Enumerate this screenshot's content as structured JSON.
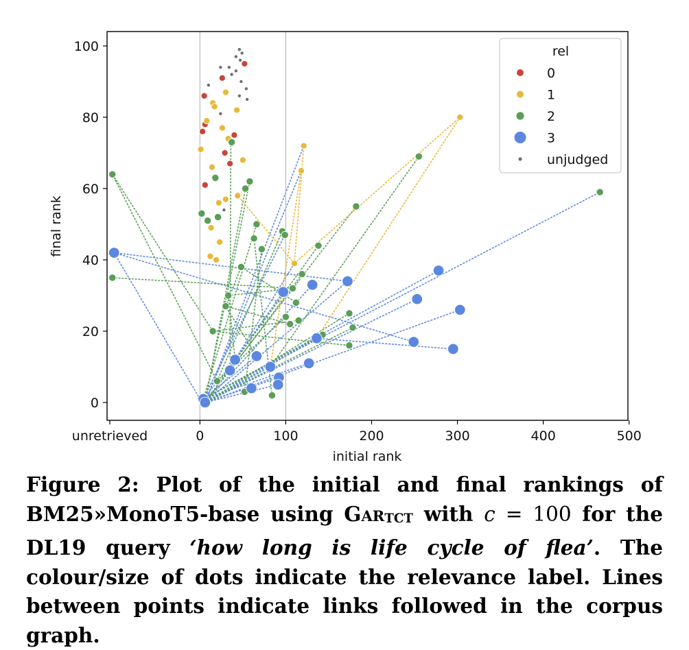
{
  "chart_data": {
    "type": "scatter",
    "xlabel": "initial rank",
    "ylabel": "final rank",
    "xlim": [
      -105,
      500
    ],
    "ylim": [
      -5,
      104
    ],
    "x_tick_values": [
      -105,
      0,
      100,
      200,
      300,
      400,
      500
    ],
    "x_tick_labels": [
      "unretrieved",
      "0",
      "100",
      "200",
      "300",
      "400",
      "500"
    ],
    "y_tick_values": [
      0,
      20,
      40,
      60,
      80,
      100
    ],
    "y_tick_labels": [
      "0",
      "20",
      "40",
      "60",
      "80",
      "100"
    ],
    "vertical_reference_lines": [
      0,
      100
    ],
    "legend": {
      "title": "rel",
      "placement": "top-right",
      "entries": [
        {
          "label": "0",
          "key": "0"
        },
        {
          "label": "1",
          "key": "1"
        },
        {
          "label": "2",
          "key": "2"
        },
        {
          "label": "3",
          "key": "3"
        },
        {
          "label": "unjudged",
          "key": "u"
        }
      ]
    },
    "relevance_colors": {
      "0": "#c9453a",
      "1": "#e8b838",
      "2": "#5a9e57",
      "3": "#5b87e0",
      "u": "#6e6e6e"
    },
    "points": [
      [
        46,
        99,
        "u"
      ],
      [
        49,
        98,
        "u"
      ],
      [
        42,
        97,
        "u"
      ],
      [
        47,
        96,
        "u"
      ],
      [
        52,
        95,
        "r0"
      ],
      [
        24,
        94,
        "u"
      ],
      [
        34,
        94,
        "u"
      ],
      [
        42,
        93,
        "u"
      ],
      [
        37,
        92,
        "u"
      ],
      [
        26,
        91,
        "r0"
      ],
      [
        48,
        90,
        "u"
      ],
      [
        10,
        89,
        "u"
      ],
      [
        54,
        88,
        "u"
      ],
      [
        30,
        87,
        "r1"
      ],
      [
        5,
        86,
        "r0"
      ],
      [
        46,
        86,
        "u"
      ],
      [
        55,
        85,
        "u"
      ],
      [
        15,
        84,
        "r1"
      ],
      [
        17,
        83,
        "r1"
      ],
      [
        43,
        82,
        "r1"
      ],
      [
        24,
        81,
        "u"
      ],
      [
        8,
        79,
        "r1"
      ],
      [
        6,
        78,
        "r0"
      ],
      [
        26,
        77,
        "r1"
      ],
      [
        3,
        76,
        "r0"
      ],
      [
        40,
        75,
        "r0"
      ],
      [
        33,
        74,
        "r1"
      ],
      [
        37,
        73,
        "r2"
      ],
      [
        29,
        70,
        "r0"
      ],
      [
        1,
        71,
        "r1"
      ],
      [
        50,
        68,
        "r1"
      ],
      [
        35,
        67,
        "r0"
      ],
      [
        14,
        66,
        "r1"
      ],
      [
        6,
        61,
        "r0"
      ],
      [
        18,
        63,
        "r2"
      ],
      [
        58,
        62,
        "r2"
      ],
      [
        53,
        60,
        "r2"
      ],
      [
        44,
        58,
        "r1"
      ],
      [
        30,
        57,
        "r1"
      ],
      [
        22,
        56,
        "r1"
      ],
      [
        28,
        54,
        "u"
      ],
      [
        2,
        53,
        "r2"
      ],
      [
        21,
        52,
        "r2"
      ],
      [
        9,
        51,
        "r2"
      ],
      [
        66,
        50,
        "r2"
      ],
      [
        13,
        49,
        "r1"
      ],
      [
        96,
        48,
        "r2"
      ],
      [
        99,
        47,
        "r2"
      ],
      [
        63,
        46,
        "r2"
      ],
      [
        23,
        45,
        "r1"
      ],
      [
        138,
        44,
        "r2"
      ],
      [
        72,
        43,
        "r2"
      ],
      [
        12,
        41,
        "r1"
      ],
      [
        19,
        40,
        "r1"
      ],
      [
        110,
        39,
        "r1"
      ],
      [
        48,
        38,
        "r2"
      ],
      [
        119,
        36,
        "r2"
      ],
      [
        108,
        32,
        "r2"
      ],
      [
        33,
        30,
        "r2"
      ],
      [
        112,
        28,
        "r2"
      ],
      [
        30,
        27,
        "r2"
      ],
      [
        174,
        25,
        "r2"
      ],
      [
        100,
        24,
        "r2"
      ],
      [
        115,
        23,
        "r2"
      ],
      [
        105,
        22,
        "r2"
      ],
      [
        178,
        21,
        "r2"
      ],
      [
        15,
        20,
        "r2"
      ],
      [
        143,
        19,
        "r2"
      ],
      [
        174,
        16,
        "r2"
      ],
      [
        20,
        6,
        "r2"
      ],
      [
        52,
        3,
        "r2"
      ],
      [
        84,
        2,
        "r2"
      ],
      [
        -102,
        64,
        "r2"
      ],
      [
        -102,
        35,
        "r2"
      ],
      [
        255,
        69,
        "r2"
      ],
      [
        182,
        55,
        "r2"
      ],
      [
        466,
        59,
        "r2"
      ],
      [
        121,
        72,
        "r1"
      ],
      [
        118,
        65,
        "r1"
      ],
      [
        303,
        80,
        "r1"
      ],
      [
        -100,
        42,
        "r3"
      ],
      [
        172,
        34,
        "r3"
      ],
      [
        131,
        33,
        "r3"
      ],
      [
        97,
        31,
        "r3"
      ],
      [
        278,
        37,
        "r3"
      ],
      [
        253,
        29,
        "r3"
      ],
      [
        303,
        26,
        "r3"
      ],
      [
        136,
        18,
        "r3"
      ],
      [
        249,
        17,
        "r3"
      ],
      [
        295,
        15,
        "r3"
      ],
      [
        41,
        12,
        "r3"
      ],
      [
        66,
        13,
        "r3"
      ],
      [
        127,
        11,
        "r3"
      ],
      [
        82,
        10,
        "r3"
      ],
      [
        35,
        9,
        "r3"
      ],
      [
        92,
        7,
        "r3"
      ],
      [
        91,
        5,
        "r3"
      ],
      [
        60,
        4,
        "r3"
      ],
      [
        4,
        1,
        "r3"
      ],
      [
        6,
        0,
        "r3"
      ]
    ],
    "links": [
      [
        0,
        1,
        -100,
        42,
        "b"
      ],
      [
        -100,
        42,
        172,
        34,
        "b"
      ],
      [
        6,
        0,
        172,
        34,
        "b"
      ],
      [
        4,
        1,
        278,
        37,
        "b"
      ],
      [
        6,
        0,
        253,
        29,
        "b"
      ],
      [
        6,
        0,
        303,
        26,
        "b"
      ],
      [
        -100,
        42,
        249,
        17,
        "b"
      ],
      [
        136,
        18,
        295,
        15,
        "b"
      ],
      [
        6,
        0,
        97,
        31,
        "b"
      ],
      [
        6,
        0,
        131,
        33,
        "b"
      ],
      [
        6,
        0,
        136,
        18,
        "b"
      ],
      [
        4,
        1,
        127,
        11,
        "b"
      ],
      [
        6,
        0,
        91,
        5,
        "b"
      ],
      [
        4,
        1,
        66,
        13,
        "b"
      ],
      [
        6,
        0,
        82,
        10,
        "b"
      ],
      [
        4,
        1,
        41,
        12,
        "b"
      ],
      [
        6,
        0,
        118,
        65,
        "b"
      ],
      [
        4,
        1,
        99,
        47,
        "b"
      ],
      [
        6,
        0,
        121,
        72,
        "b"
      ],
      [
        41,
        12,
        110,
        39,
        "b"
      ],
      [
        6,
        0,
        92,
        7,
        "b"
      ],
      [
        4,
        1,
        466,
        59,
        "b"
      ],
      [
        -102,
        64,
        20,
        6,
        "g"
      ],
      [
        -102,
        35,
        110,
        32,
        "g"
      ],
      [
        255,
        69,
        82,
        10,
        "g"
      ],
      [
        182,
        55,
        6,
        0,
        "g"
      ],
      [
        6,
        0,
        138,
        44,
        "g"
      ],
      [
        6,
        0,
        174,
        25,
        "g"
      ],
      [
        6,
        0,
        178,
        21,
        "g"
      ],
      [
        15,
        20,
        174,
        16,
        "g"
      ],
      [
        4,
        1,
        143,
        19,
        "g"
      ],
      [
        30,
        27,
        105,
        22,
        "g"
      ],
      [
        48,
        38,
        112,
        28,
        "g"
      ],
      [
        35,
        9,
        119,
        36,
        "g"
      ],
      [
        20,
        6,
        96,
        48,
        "g"
      ],
      [
        52,
        3,
        72,
        43,
        "g"
      ],
      [
        84,
        2,
        63,
        46,
        "g"
      ],
      [
        4,
        1,
        66,
        50,
        "g"
      ],
      [
        30,
        27,
        48,
        38,
        "g"
      ],
      [
        33,
        30,
        108,
        32,
        "g"
      ],
      [
        6,
        0,
        58,
        62,
        "g"
      ],
      [
        6,
        0,
        53,
        60,
        "g"
      ],
      [
        15,
        20,
        115,
        23,
        "g"
      ],
      [
        20,
        6,
        100,
        24,
        "g"
      ],
      [
        35,
        9,
        36,
        73,
        "g"
      ],
      [
        41,
        12,
        33,
        30,
        "g"
      ],
      [
        66,
        13,
        30,
        27,
        "g"
      ],
      [
        15,
        20,
        -102,
        64,
        "g"
      ],
      [
        110,
        39,
        121,
        72,
        "y"
      ],
      [
        110,
        39,
        303,
        80,
        "y"
      ],
      [
        110,
        39,
        44,
        58,
        "y"
      ],
      [
        118,
        65,
        82,
        10,
        "y"
      ],
      [
        303,
        80,
        136,
        18,
        "y"
      ]
    ]
  },
  "caption": {
    "figure_label": "Figure 2:",
    "part1": " Plot of the initial and final rankings of BM25»MonoT5-base using ",
    "method_name": "Gar",
    "method_subscript": "TCT",
    "part2": " with ",
    "math_variable": "c",
    "math_equals": " = ",
    "math_value": "100",
    "part3": " for the DL19 query ",
    "query": "‘how long is life cycle of flea’",
    "part4": ". The colour/size of dots indicate the relevance label. Lines between points indicate links followed in the corpus graph."
  }
}
